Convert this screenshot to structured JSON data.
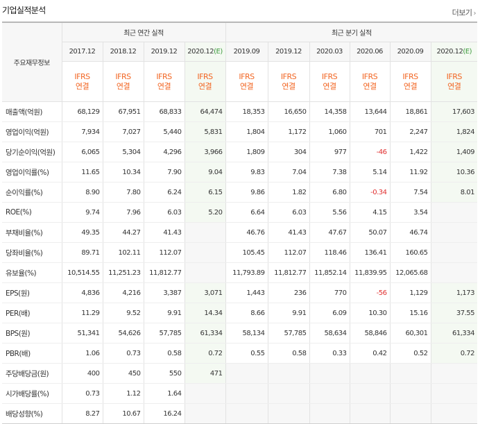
{
  "title": "기업실적분석",
  "more_label": "더보기",
  "header": {
    "label_col": "주요재무정보",
    "annual_group": "최근 연간 실적",
    "quarter_group": "최근 분기 실적",
    "annual_dates": [
      "2017.12",
      "2018.12",
      "2019.12",
      "2020.12"
    ],
    "annual_est_mark": "(E)",
    "quarter_dates": [
      "2019.09",
      "2019.12",
      "2020.03",
      "2020.06",
      "2020.09",
      "2020.12"
    ],
    "quarter_est_mark": "(E)",
    "ifrs_top": "IFRS",
    "ifrs_bottom": "연결"
  },
  "rows": [
    {
      "label": "매출액(억원)",
      "annual": [
        "68,129",
        "67,951",
        "68,833",
        "64,474"
      ],
      "quarter": [
        "18,353",
        "16,650",
        "14,358",
        "13,644",
        "18,861",
        "17,603"
      ]
    },
    {
      "label": "영업이익(억원)",
      "annual": [
        "7,934",
        "7,027",
        "5,440",
        "5,831"
      ],
      "quarter": [
        "1,804",
        "1,172",
        "1,060",
        "701",
        "2,247",
        "1,824"
      ]
    },
    {
      "label": "당기순이익(억원)",
      "annual": [
        "6,065",
        "5,304",
        "4,296",
        "3,966"
      ],
      "quarter": [
        "1,809",
        "304",
        "977",
        "-46",
        "1,422",
        "1,409"
      ]
    },
    {
      "label": "영업이익률(%)",
      "annual": [
        "11.65",
        "10.34",
        "7.90",
        "9.04"
      ],
      "quarter": [
        "9.83",
        "7.04",
        "7.38",
        "5.14",
        "11.92",
        "10.36"
      ]
    },
    {
      "label": "순이익률(%)",
      "annual": [
        "8.90",
        "7.80",
        "6.24",
        "6.15"
      ],
      "quarter": [
        "9.86",
        "1.82",
        "6.80",
        "-0.34",
        "7.54",
        "8.01"
      ]
    },
    {
      "label": "ROE(%)",
      "annual": [
        "9.74",
        "7.96",
        "6.03",
        "5.20"
      ],
      "quarter": [
        "6.64",
        "6.03",
        "5.56",
        "4.15",
        "3.54",
        ""
      ]
    },
    {
      "label": "부채비율(%)",
      "annual": [
        "49.35",
        "44.27",
        "41.43",
        ""
      ],
      "quarter": [
        "46.76",
        "41.43",
        "47.67",
        "50.07",
        "46.74",
        ""
      ]
    },
    {
      "label": "당좌비율(%)",
      "annual": [
        "89.71",
        "102.11",
        "112.07",
        ""
      ],
      "quarter": [
        "105.45",
        "112.07",
        "118.46",
        "136.41",
        "160.65",
        ""
      ]
    },
    {
      "label": "유보율(%)",
      "annual": [
        "10,514.55",
        "11,251.23",
        "11,812.77",
        ""
      ],
      "quarter": [
        "11,793.89",
        "11,812.77",
        "11,852.14",
        "11,839.95",
        "12,065.68",
        ""
      ]
    },
    {
      "label": "EPS(원)",
      "annual": [
        "4,836",
        "4,216",
        "3,387",
        "3,071"
      ],
      "quarter": [
        "1,443",
        "236",
        "770",
        "-56",
        "1,129",
        "1,173"
      ]
    },
    {
      "label": "PER(배)",
      "annual": [
        "11.29",
        "9.52",
        "9.91",
        "14.34"
      ],
      "quarter": [
        "8.66",
        "9.91",
        "6.09",
        "10.30",
        "15.16",
        "37.55"
      ]
    },
    {
      "label": "BPS(원)",
      "annual": [
        "51,341",
        "54,626",
        "57,785",
        "61,334"
      ],
      "quarter": [
        "58,134",
        "57,785",
        "58,634",
        "58,846",
        "60,301",
        "61,334"
      ]
    },
    {
      "label": "PBR(배)",
      "annual": [
        "1.06",
        "0.73",
        "0.58",
        "0.72"
      ],
      "quarter": [
        "0.55",
        "0.58",
        "0.33",
        "0.42",
        "0.52",
        "0.72"
      ]
    },
    {
      "label": "주당배당금(원)",
      "annual": [
        "400",
        "450",
        "550",
        "471"
      ],
      "quarter": [
        "",
        "",
        "",
        "",
        "",
        ""
      ]
    },
    {
      "label": "시가배당률(%)",
      "annual": [
        "0.73",
        "1.12",
        "1.64",
        ""
      ],
      "quarter": [
        "",
        "",
        "",
        "",
        "",
        ""
      ]
    },
    {
      "label": "배당성향(%)",
      "annual": [
        "8.27",
        "10.67",
        "16.24",
        ""
      ],
      "quarter": [
        "",
        "",
        "",
        "",
        "",
        ""
      ]
    }
  ],
  "colors": {
    "ifrs": "#f26522",
    "negative": "#e03030",
    "estimate_bg": "#f4f9f2",
    "estimate_mark": "#3c9a3c"
  }
}
